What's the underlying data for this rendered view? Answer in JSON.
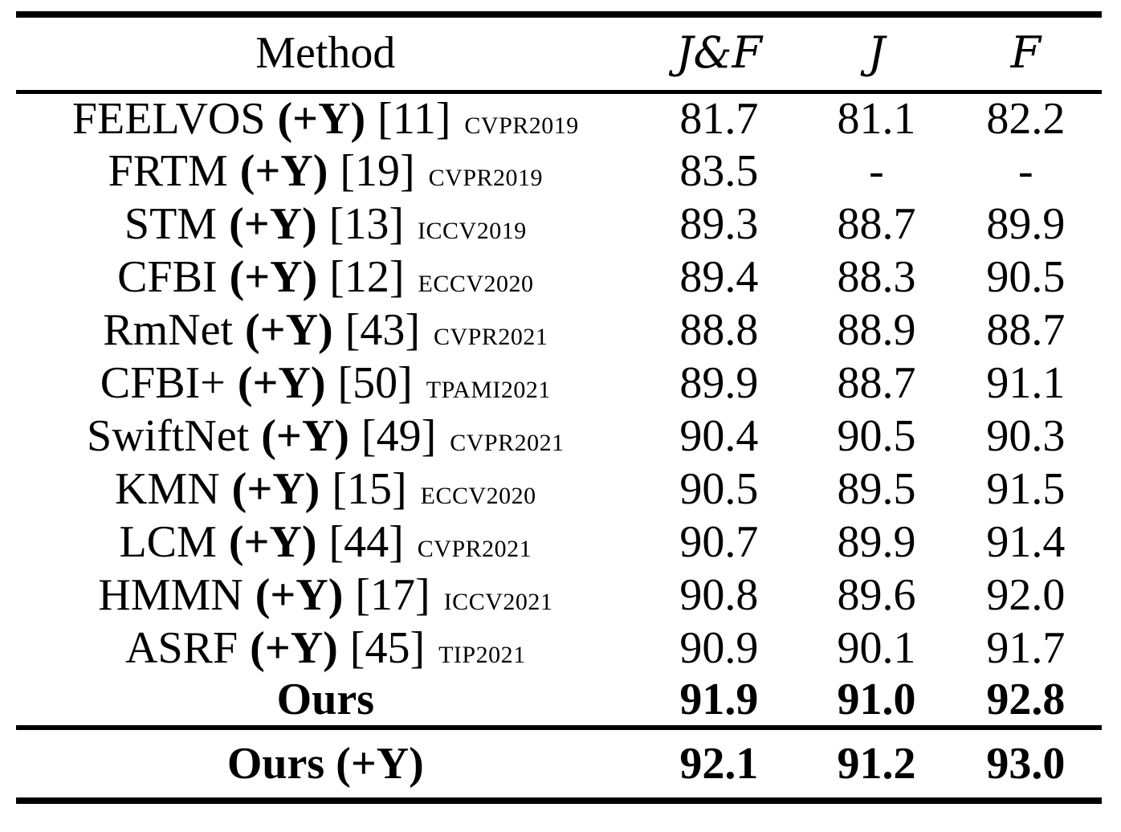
{
  "page": {
    "background": "#ffffff",
    "text_color": "#000000"
  },
  "table": {
    "columns": [
      {
        "label": "Method",
        "style": "roman"
      },
      {
        "label": "J&F",
        "style": "calligraphic"
      },
      {
        "label": "J",
        "style": "calligraphic"
      },
      {
        "label": "F",
        "style": "calligraphic"
      }
    ],
    "rows": [
      {
        "name": "FEELVOS",
        "tag": "(+Y)",
        "ref": "[11]",
        "venue": "CVPR2019",
        "jf": "81.7",
        "j": "81.1",
        "f": "82.2",
        "bold": false
      },
      {
        "name": "FRTM",
        "tag": "(+Y)",
        "ref": "[19]",
        "venue": "CVPR2019",
        "jf": "83.5",
        "j": "-",
        "f": "-",
        "bold": false
      },
      {
        "name": "STM",
        "tag": "(+Y)",
        "ref": "[13]",
        "venue": "ICCV2019",
        "jf": "89.3",
        "j": "88.7",
        "f": "89.9",
        "bold": false
      },
      {
        "name": "CFBI",
        "tag": "(+Y)",
        "ref": "[12]",
        "venue": "ECCV2020",
        "jf": "89.4",
        "j": "88.3",
        "f": "90.5",
        "bold": false
      },
      {
        "name": "RmNet",
        "tag": "(+Y)",
        "ref": "[43]",
        "venue": "CVPR2021",
        "jf": "88.8",
        "j": "88.9",
        "f": "88.7",
        "bold": false
      },
      {
        "name": "CFBI+",
        "tag": "(+Y)",
        "ref": "[50]",
        "venue": "TPAMI2021",
        "jf": "89.9",
        "j": "88.7",
        "f": "91.1",
        "bold": false
      },
      {
        "name": "SwiftNet",
        "tag": "(+Y)",
        "ref": "[49]",
        "venue": "CVPR2021",
        "jf": "90.4",
        "j": "90.5",
        "f": "90.3",
        "bold": false
      },
      {
        "name": "KMN",
        "tag": "(+Y)",
        "ref": "[15]",
        "venue": "ECCV2020",
        "jf": "90.5",
        "j": "89.5",
        "f": "91.5",
        "bold": false
      },
      {
        "name": "LCM",
        "tag": "(+Y)",
        "ref": "[44]",
        "venue": "CVPR2021",
        "jf": "90.7",
        "j": "89.9",
        "f": "91.4",
        "bold": false
      },
      {
        "name": "HMMN",
        "tag": "(+Y)",
        "ref": "[17]",
        "venue": "ICCV2021",
        "jf": "90.8",
        "j": "89.6",
        "f": "92.0",
        "bold": false
      },
      {
        "name": "ASRF",
        "tag": "(+Y)",
        "ref": "[45]",
        "venue": "TIP2021",
        "jf": "90.9",
        "j": "90.1",
        "f": "91.7",
        "bold": false
      },
      {
        "name": "Ours",
        "tag": "",
        "ref": "",
        "venue": "",
        "jf": "91.9",
        "j": "91.0",
        "f": "92.8",
        "bold": true
      }
    ],
    "footer_rows": [
      {
        "name": "Ours (+Y)",
        "tag": "",
        "ref": "",
        "venue": "",
        "jf": "92.1",
        "j": "91.2",
        "f": "93.0",
        "bold": true
      }
    ]
  }
}
